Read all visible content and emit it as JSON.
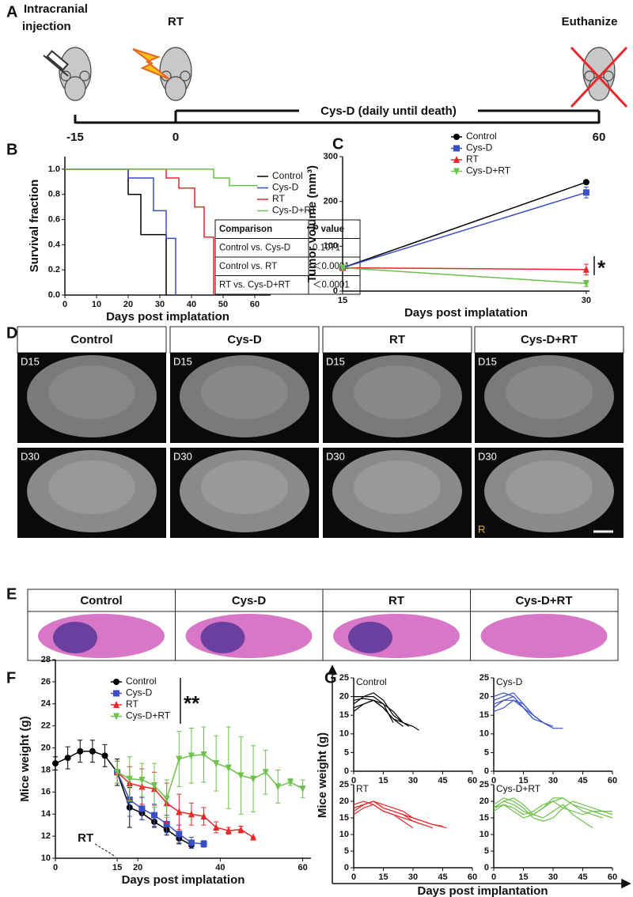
{
  "panel_labels": [
    "A",
    "B",
    "C",
    "D",
    "E",
    "F",
    "G"
  ],
  "timeline": {
    "events": [
      "Intracranial\ninjection",
      "RT",
      "Euthanize"
    ],
    "ticks": [
      "-15",
      "0",
      "60"
    ],
    "treatment": "Cys-D (daily until death)"
  },
  "mri": {
    "columns": [
      "Control",
      "Cys-D",
      "RT",
      "Cys-D+RT"
    ],
    "images": [
      [
        "D15",
        "D15",
        "D15",
        "D15"
      ],
      [
        "D30",
        "D30",
        "D30",
        "D30"
      ]
    ],
    "orientation": "R"
  },
  "histology": {
    "columns": [
      "Control",
      "Cys-D",
      "RT",
      "Cys-D+RT"
    ]
  },
  "panel_g": {
    "y_label": "Mice weight (g)",
    "x_label": "Days post implantation"
  },
  "chart_data": [
    {
      "type": "line",
      "x_label": "Days post implatation",
      "y_label": "Survival fraction",
      "legend": "upper right",
      "xlim": [
        0,
        65
      ],
      "ylim": [
        0,
        1.1
      ],
      "xticks": [
        0,
        10,
        20,
        30,
        40,
        50,
        60
      ],
      "yticks": [
        {
          "value": 0,
          "label": "0.0"
        },
        0.2,
        0.4,
        0.6,
        0.8,
        {
          "value": 1,
          "label": "1.0"
        }
      ],
      "series": [
        {
          "name": "Control",
          "color": "#000000",
          "x": [
            0,
            20,
            20,
            24,
            24,
            32,
            32
          ],
          "values": [
            1,
            1,
            0.8,
            0.8,
            0.48,
            0.48,
            0
          ]
        },
        {
          "name": "Cys-D",
          "color": "#3a4fc4",
          "x": [
            0,
            20,
            20,
            28,
            28,
            32,
            32,
            35,
            35
          ],
          "values": [
            1,
            1,
            0.93,
            0.93,
            0.67,
            0.67,
            0.45,
            0.45,
            0
          ]
        },
        {
          "name": "RT",
          "color": "#e8282b",
          "x": [
            0,
            32,
            32,
            36,
            36,
            41,
            41,
            44,
            44,
            47,
            47
          ],
          "values": [
            1,
            1,
            0.93,
            0.93,
            0.85,
            0.85,
            0.7,
            0.7,
            0.46,
            0.46,
            0
          ]
        },
        {
          "name": "Cys-D+RT",
          "color": "#6cc24a",
          "x": [
            0,
            47,
            47,
            52,
            52,
            61
          ],
          "values": [
            1,
            1,
            0.93,
            0.93,
            0.87,
            0.87
          ]
        }
      ],
      "table": {
        "header": [
          "Comparison",
          "P value"
        ],
        "rows": [
          [
            "Control vs. Cys-D",
            "0.1071"
          ],
          [
            "Control vs. RT",
            "＜0.0001"
          ],
          [
            "RT vs. Cys-D+RT",
            "＜0.0001"
          ]
        ]
      }
    },
    {
      "type": "line",
      "x_label": "Days post implatation",
      "y_label": "Tumor volume (mm³)",
      "legend": "upper left",
      "significance": "*",
      "xlim": [
        15,
        30.2
      ],
      "ylim": [
        0,
        300
      ],
      "xticks": [
        15,
        30
      ],
      "yticks": [
        0,
        100,
        200,
        300
      ],
      "series": [
        {
          "name": "Control",
          "color": "#000000",
          "marker": "circle",
          "x": [
            15,
            30
          ],
          "values": [
            52,
            243
          ],
          "errors": [
            3,
            3
          ]
        },
        {
          "name": "Cys-D",
          "color": "#3a4fc4",
          "marker": "square",
          "x": [
            15,
            30
          ],
          "values": [
            52,
            220
          ],
          "errors": [
            3,
            12
          ]
        },
        {
          "name": "RT",
          "color": "#e8282b",
          "marker": "triangle",
          "x": [
            15,
            30
          ],
          "values": [
            52,
            48
          ],
          "errors": [
            3,
            12
          ]
        },
        {
          "name": "Cys-D+RT",
          "color": "#6cc24a",
          "marker": "triangle-down",
          "x": [
            15,
            30
          ],
          "values": [
            52,
            17
          ],
          "errors": [
            3,
            7
          ]
        }
      ]
    },
    {
      "type": "line",
      "x_label": "Days post implatation",
      "y_label": "Mice weight (g)",
      "legend": "upper center",
      "significance": "**",
      "event": {
        "text": "RT",
        "x": 15
      },
      "xlim": [
        0,
        62
      ],
      "ylim": [
        10,
        28
      ],
      "xticks": [
        0,
        15,
        20,
        40,
        60
      ],
      "yticks": [
        10,
        12,
        14,
        16,
        18,
        20,
        22,
        24,
        26,
        28
      ],
      "series": [
        {
          "name": "Control",
          "color": "#000000",
          "marker": "circle",
          "x": [
            0,
            3,
            6,
            9,
            12,
            15,
            18,
            21,
            24,
            27,
            30,
            33
          ],
          "values": [
            18.6,
            19.1,
            19.7,
            19.7,
            19.3,
            17.8,
            14.6,
            14.1,
            13.3,
            12.6,
            11.8,
            11.2
          ],
          "errors": [
            0.6,
            1,
            1,
            1,
            1,
            1.2,
            1.8,
            0.6,
            0.5,
            0.5,
            0.5,
            0.3
          ]
        },
        {
          "name": "Cys-D",
          "color": "#3a4fc4",
          "marker": "square",
          "x": [
            15,
            18,
            21,
            24,
            27,
            30,
            33,
            36
          ],
          "values": [
            17.8,
            15.3,
            14.5,
            13.9,
            13.1,
            12.2,
            11.4,
            11.3
          ],
          "errors": [
            1,
            1.5,
            1,
            1,
            0.8,
            0.8,
            0.5,
            0.3
          ]
        },
        {
          "name": "RT",
          "color": "#e8282b",
          "marker": "triangle",
          "x": [
            15,
            18,
            21,
            24,
            27,
            30,
            33,
            36,
            39,
            42,
            45,
            48
          ],
          "values": [
            17.8,
            16.8,
            16.5,
            16.3,
            15,
            14.2,
            14,
            13.8,
            12.8,
            12.5,
            12.6,
            11.9
          ],
          "errors": [
            1,
            1.5,
            1.6,
            1.5,
            1.8,
            1.6,
            1,
            0.8,
            0.5,
            0.3,
            0.3,
            0
          ]
        },
        {
          "name": "Cys-D+RT",
          "color": "#6cc24a",
          "marker": "triangle-down",
          "x": [
            15,
            18,
            21,
            24,
            27,
            30,
            33,
            36,
            39,
            42,
            45,
            48,
            51,
            54,
            57,
            60
          ],
          "values": [
            17.8,
            17.2,
            17.1,
            16.6,
            15.4,
            19,
            19.3,
            19.4,
            18.6,
            18.2,
            17.5,
            17.2,
            17.8,
            16.5,
            16.9,
            16.3
          ],
          "errors": [
            1,
            2,
            1.5,
            2,
            1.7,
            2.5,
            2.5,
            2.5,
            2.5,
            3.7,
            3.5,
            3,
            2,
            1.5,
            0.3,
            0.8
          ]
        }
      ]
    },
    {
      "type": "line",
      "title": "Control",
      "xlim": [
        0,
        60
      ],
      "ylim": [
        0,
        25
      ],
      "xticks": [
        0,
        15,
        30,
        45,
        60
      ],
      "yticks": [
        0,
        5,
        10,
        15,
        20,
        25
      ],
      "series": [
        {
          "color": "#000000",
          "x": [
            0,
            5,
            10,
            15,
            20,
            25,
            30,
            33
          ],
          "values": [
            18,
            20,
            21,
            19,
            15,
            13,
            12,
            11
          ]
        },
        {
          "color": "#000000",
          "x": [
            0,
            5,
            10,
            15,
            20,
            25
          ],
          "values": [
            19,
            19.5,
            19,
            17,
            14,
            12
          ]
        },
        {
          "color": "#000000",
          "x": [
            0,
            5,
            10,
            15,
            20,
            25,
            28
          ],
          "values": [
            17,
            18,
            19,
            18,
            16,
            13,
            12
          ]
        },
        {
          "color": "#000000",
          "x": [
            0,
            5,
            10,
            15,
            20
          ],
          "values": [
            20,
            20,
            20,
            18,
            13
          ]
        },
        {
          "color": "#000000",
          "x": [
            0,
            5,
            10,
            15,
            20,
            25
          ],
          "values": [
            16,
            18,
            19,
            17,
            14,
            13
          ]
        }
      ]
    },
    {
      "type": "line",
      "title": "Cys-D",
      "xlim": [
        0,
        60
      ],
      "ylim": [
        0,
        25
      ],
      "xticks": [
        0,
        15,
        30,
        45,
        60
      ],
      "yticks": [
        0,
        5,
        10,
        15,
        20,
        25
      ],
      "series": [
        {
          "color": "#3a4fc4",
          "x": [
            0,
            5,
            10,
            15,
            20,
            25,
            30,
            35
          ],
          "values": [
            19,
            20,
            21,
            18,
            15,
            13,
            11.5,
            11.5
          ]
        },
        {
          "color": "#3a4fc4",
          "x": [
            0,
            5,
            10,
            15,
            20,
            25
          ],
          "values": [
            18,
            19,
            20,
            17,
            14,
            13
          ]
        },
        {
          "color": "#3a4fc4",
          "x": [
            0,
            5,
            10,
            15,
            20,
            25,
            30
          ],
          "values": [
            17,
            19,
            19,
            17,
            15,
            13,
            12
          ]
        },
        {
          "color": "#3a4fc4",
          "x": [
            0,
            5,
            10,
            15,
            20
          ],
          "values": [
            20,
            21,
            20,
            17,
            14
          ]
        },
        {
          "color": "#3a4fc4",
          "x": [
            0,
            5,
            10,
            15,
            20,
            25
          ],
          "values": [
            16,
            17,
            19,
            18,
            15,
            13
          ]
        }
      ]
    },
    {
      "type": "line",
      "title": "RT",
      "xlim": [
        0,
        60
      ],
      "ylim": [
        0,
        25
      ],
      "xticks": [
        0,
        15,
        30,
        45,
        60
      ],
      "yticks": [
        0,
        5,
        10,
        15,
        20,
        25
      ],
      "series": [
        {
          "color": "#e8282b",
          "x": [
            0,
            5,
            10,
            15,
            20,
            25,
            30,
            35,
            40,
            47
          ],
          "values": [
            18,
            19,
            20,
            19,
            18,
            17,
            15,
            14,
            13,
            12
          ]
        },
        {
          "color": "#e8282b",
          "x": [
            0,
            5,
            10,
            15,
            20,
            25,
            30,
            35,
            40
          ],
          "values": [
            19,
            20,
            19,
            17,
            16,
            15,
            14,
            13,
            12
          ]
        },
        {
          "color": "#e8282b",
          "x": [
            0,
            5,
            10,
            15,
            20,
            25,
            30,
            35
          ],
          "values": [
            17,
            19,
            20,
            18,
            17,
            16,
            14,
            13
          ]
        },
        {
          "color": "#e8282b",
          "x": [
            0,
            5,
            10,
            15,
            20,
            25,
            30
          ],
          "values": [
            16,
            18,
            19,
            17,
            16,
            14,
            12
          ]
        },
        {
          "color": "#e8282b",
          "x": [
            0,
            5,
            10,
            15,
            20,
            25,
            30,
            35,
            40,
            45
          ],
          "values": [
            18,
            19,
            20,
            18,
            17,
            16,
            15,
            14,
            13,
            12.5
          ]
        }
      ]
    },
    {
      "type": "line",
      "title": "Cys-D+RT",
      "xlim": [
        0,
        60
      ],
      "ylim": [
        0,
        25
      ],
      "xticks": [
        0,
        15,
        30,
        45,
        60
      ],
      "yticks": [
        0,
        5,
        10,
        15,
        20,
        25
      ],
      "series": [
        {
          "color": "#6cc24a",
          "x": [
            0,
            5,
            10,
            15,
            20,
            25,
            30,
            35,
            40,
            45,
            50,
            55,
            60
          ],
          "values": [
            18,
            20,
            19,
            17,
            16,
            18,
            20,
            21,
            19,
            18,
            17,
            16,
            15
          ]
        },
        {
          "color": "#6cc24a",
          "x": [
            0,
            5,
            10,
            15,
            20,
            25,
            30,
            35,
            40,
            45,
            50,
            55,
            60
          ],
          "values": [
            19,
            21,
            20,
            18,
            15,
            14,
            15,
            18,
            20,
            19,
            18,
            17,
            16
          ]
        },
        {
          "color": "#6cc24a",
          "x": [
            0,
            5,
            10,
            15,
            20,
            25,
            30,
            35,
            40,
            45,
            50,
            55,
            60
          ],
          "values": [
            17,
            19,
            18,
            16,
            17,
            19,
            20,
            18,
            17,
            16,
            17,
            17,
            17
          ]
        },
        {
          "color": "#6cc24a",
          "x": [
            0,
            5,
            10,
            15,
            20,
            25,
            30,
            35,
            40,
            45,
            50
          ],
          "values": [
            18,
            20,
            21,
            19,
            16,
            15,
            17,
            19,
            16,
            14,
            12
          ]
        },
        {
          "color": "#6cc24a",
          "x": [
            0,
            5,
            10,
            15,
            20,
            25,
            30,
            35,
            40,
            45,
            50,
            55
          ],
          "values": [
            18,
            19,
            17,
            15,
            16,
            18,
            21,
            21,
            19,
            17,
            16,
            15
          ]
        }
      ]
    }
  ]
}
